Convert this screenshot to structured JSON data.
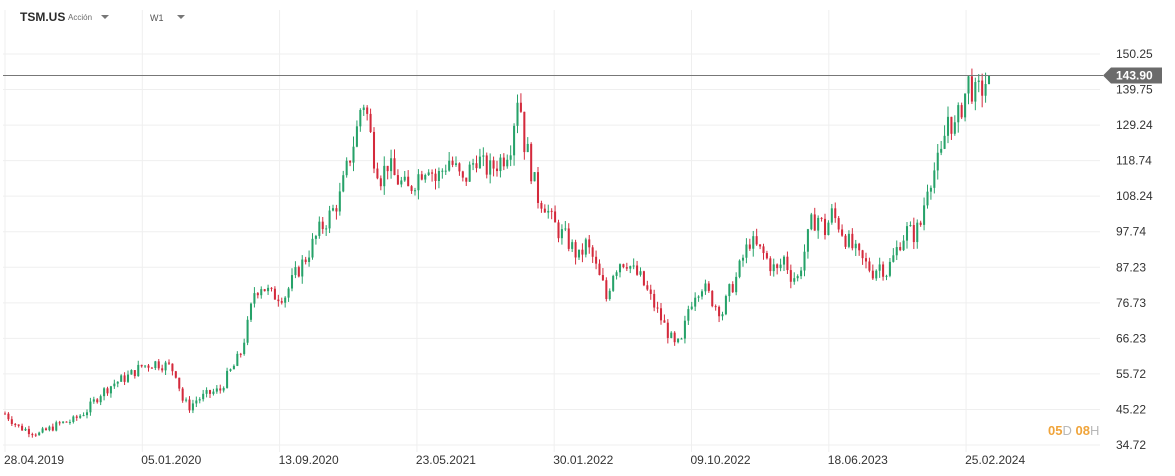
{
  "header": {
    "symbol": "TSM.US",
    "instrument_type": "Acción",
    "timeframe": "W1"
  },
  "countdown": {
    "days": "05",
    "days_unit": "D",
    "hours": "08",
    "hours_unit": "H"
  },
  "colors": {
    "up": "#26a269",
    "down": "#d42a3c",
    "price_line": "#777777",
    "price_tag": "#6b6b6b"
  },
  "chart_data": {
    "type": "candlestick",
    "current_price": 143.9,
    "current_price_label": "143.90",
    "yticks": [
      "150.25",
      "139.75",
      "129.24",
      "118.74",
      "108.24",
      "97.74",
      "87.23",
      "76.73",
      "66.23",
      "55.72",
      "45.22",
      "34.72"
    ],
    "ytick_values": [
      150.25,
      139.75,
      129.24,
      118.74,
      108.24,
      97.74,
      87.23,
      76.73,
      66.23,
      55.72,
      45.22,
      34.72
    ],
    "ylim": [
      34.72,
      150.25
    ],
    "xticks": [
      "28.04.2019",
      "05.01.2020",
      "13.09.2020",
      "23.05.2021",
      "30.01.2022",
      "09.10.2022",
      "18.06.2023",
      "25.02.2024"
    ],
    "close_path": [
      [
        0,
        44
      ],
      [
        4,
        40
      ],
      [
        10,
        38
      ],
      [
        16,
        41
      ],
      [
        20,
        42
      ],
      [
        24,
        45
      ],
      [
        28,
        50
      ],
      [
        32,
        53
      ],
      [
        36,
        55
      ],
      [
        40,
        58
      ],
      [
        44,
        59
      ],
      [
        48,
        58
      ],
      [
        50,
        56
      ],
      [
        52,
        48
      ],
      [
        54,
        46
      ],
      [
        56,
        48
      ],
      [
        60,
        50
      ],
      [
        63,
        51
      ],
      [
        65,
        55
      ],
      [
        67,
        58
      ],
      [
        69,
        62
      ],
      [
        71,
        70
      ],
      [
        73,
        80
      ],
      [
        75,
        82
      ],
      [
        78,
        79
      ],
      [
        82,
        79
      ],
      [
        85,
        85
      ],
      [
        88,
        90
      ],
      [
        92,
        98
      ],
      [
        96,
        104
      ],
      [
        98,
        108
      ],
      [
        100,
        116
      ],
      [
        102,
        124
      ],
      [
        103,
        128
      ],
      [
        104,
        134
      ],
      [
        105,
        136
      ],
      [
        106,
        132
      ],
      [
        108,
        120
      ],
      [
        110,
        114
      ],
      [
        112,
        118
      ],
      [
        114,
        114
      ],
      [
        116,
        112
      ],
      [
        118,
        110
      ],
      [
        120,
        113
      ],
      [
        122,
        116
      ],
      [
        124,
        118
      ],
      [
        126,
        113
      ],
      [
        128,
        116
      ],
      [
        130,
        119
      ],
      [
        132,
        116
      ],
      [
        134,
        112
      ],
      [
        136,
        116
      ],
      [
        138,
        120
      ],
      [
        140,
        117
      ],
      [
        142,
        116
      ],
      [
        144,
        118
      ],
      [
        146,
        120
      ],
      [
        148,
        124
      ],
      [
        150,
        138
      ],
      [
        151,
        134
      ],
      [
        152,
        124
      ],
      [
        153,
        121
      ],
      [
        154,
        116
      ],
      [
        156,
        108
      ],
      [
        158,
        106
      ],
      [
        160,
        101
      ],
      [
        162,
        98
      ],
      [
        164,
        96
      ],
      [
        166,
        93
      ],
      [
        168,
        90
      ],
      [
        170,
        94
      ],
      [
        172,
        90
      ],
      [
        174,
        84
      ],
      [
        175,
        82
      ],
      [
        176,
        78
      ],
      [
        178,
        86
      ],
      [
        180,
        89
      ],
      [
        182,
        89
      ],
      [
        184,
        86
      ],
      [
        186,
        84
      ],
      [
        188,
        80
      ],
      [
        190,
        76
      ],
      [
        192,
        72
      ],
      [
        194,
        68
      ],
      [
        196,
        64
      ],
      [
        198,
        65
      ],
      [
        199,
        70
      ],
      [
        200,
        75
      ],
      [
        202,
        80
      ],
      [
        204,
        82
      ],
      [
        206,
        79
      ],
      [
        208,
        76
      ],
      [
        210,
        74
      ],
      [
        212,
        80
      ],
      [
        214,
        84
      ],
      [
        216,
        90
      ],
      [
        218,
        95
      ],
      [
        220,
        93
      ],
      [
        222,
        91
      ],
      [
        224,
        88
      ],
      [
        226,
        86
      ],
      [
        228,
        90
      ],
      [
        230,
        85
      ],
      [
        232,
        84
      ],
      [
        234,
        92
      ],
      [
        236,
        100
      ],
      [
        238,
        102
      ],
      [
        240,
        98
      ],
      [
        242,
        103
      ],
      [
        244,
        100
      ],
      [
        246,
        96
      ],
      [
        248,
        93
      ],
      [
        250,
        90
      ],
      [
        252,
        88
      ],
      [
        254,
        86
      ],
      [
        256,
        88
      ],
      [
        258,
        86
      ],
      [
        260,
        90
      ],
      [
        262,
        95
      ],
      [
        264,
        98
      ],
      [
        266,
        97
      ],
      [
        268,
        100
      ],
      [
        270,
        112
      ],
      [
        272,
        116
      ],
      [
        274,
        120
      ],
      [
        276,
        132
      ],
      [
        278,
        128
      ],
      [
        280,
        135
      ],
      [
        282,
        142
      ],
      [
        284,
        138
      ],
      [
        286,
        140
      ],
      [
        288,
        144
      ]
    ]
  }
}
